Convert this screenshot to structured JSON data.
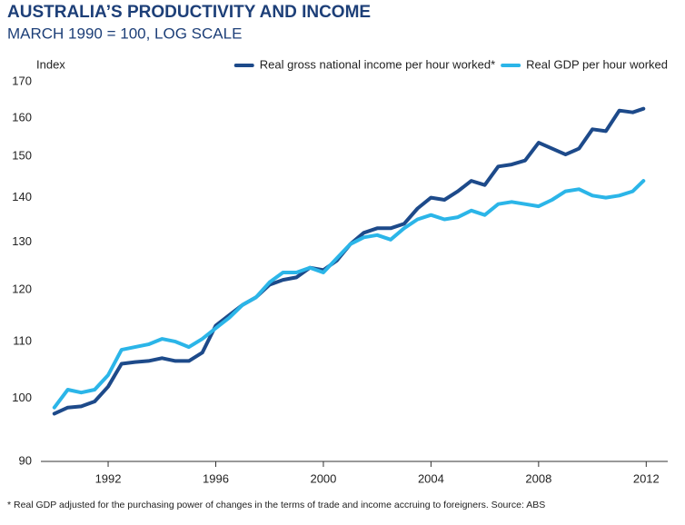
{
  "chart_data": {
    "type": "line",
    "title": "AUSTRALIA’S PRODUCTIVITY AND INCOME",
    "subtitle": "MARCH 1990 = 100, LOG SCALE",
    "y_label": "Index",
    "footnote": "* Real GDP adjusted for the purchasing power of changes in the terms of trade and income accruing to foreigners. Source: ABS",
    "x": [
      1990.0,
      1990.5,
      1991.0,
      1991.5,
      1992.0,
      1992.5,
      1993.0,
      1993.5,
      1994.0,
      1994.5,
      1995.0,
      1995.5,
      1996.0,
      1996.5,
      1997.0,
      1997.5,
      1998.0,
      1998.5,
      1999.0,
      1999.5,
      2000.0,
      2000.5,
      2001.0,
      2001.5,
      2002.0,
      2002.5,
      2003.0,
      2003.5,
      2004.0,
      2004.5,
      2005.0,
      2005.5,
      2006.0,
      2006.5,
      2007.0,
      2007.5,
      2008.0,
      2008.5,
      2009.0,
      2009.5,
      2010.0,
      2010.5,
      2011.0,
      2011.5,
      2011.9
    ],
    "series": [
      {
        "name": "Real gross national income per hour worked*",
        "color": "#1d4a8a",
        "values": [
          97.5,
          98.5,
          98.7,
          99.5,
          102,
          106,
          106.3,
          106.5,
          107,
          106.5,
          106.5,
          108,
          113,
          115,
          117,
          118.5,
          121,
          122,
          122.5,
          124.5,
          124,
          126,
          129.5,
          132,
          133,
          133,
          134,
          137.5,
          140,
          139.5,
          141.5,
          144,
          143,
          147.5,
          148,
          149,
          153.5,
          152,
          150.5,
          152,
          157,
          156.5,
          162,
          161.5,
          162.5
        ]
      },
      {
        "name": "Real GDP per hour worked",
        "color": "#2bb5e8",
        "values": [
          98.5,
          101.5,
          101,
          101.5,
          104,
          108.5,
          109,
          109.5,
          110.5,
          110,
          109,
          110.5,
          112.5,
          114.5,
          117,
          118.5,
          121.5,
          123.5,
          123.5,
          124.5,
          123.5,
          126.5,
          129.5,
          131,
          131.5,
          130.5,
          133,
          135,
          136,
          135,
          135.5,
          137,
          136,
          138.5,
          139,
          138.5,
          138,
          139.5,
          141.5,
          142,
          140.5,
          140,
          140.5,
          141.5,
          144
        ]
      }
    ],
    "xlim": [
      1989.5,
      2012.8
    ],
    "xticks": [
      1992,
      1996,
      2000,
      2004,
      2008,
      2012
    ],
    "ylim": [
      90,
      170
    ],
    "yticks": [
      90,
      100,
      110,
      120,
      130,
      140,
      150,
      160,
      170
    ],
    "log_scale": true,
    "grid": false
  }
}
